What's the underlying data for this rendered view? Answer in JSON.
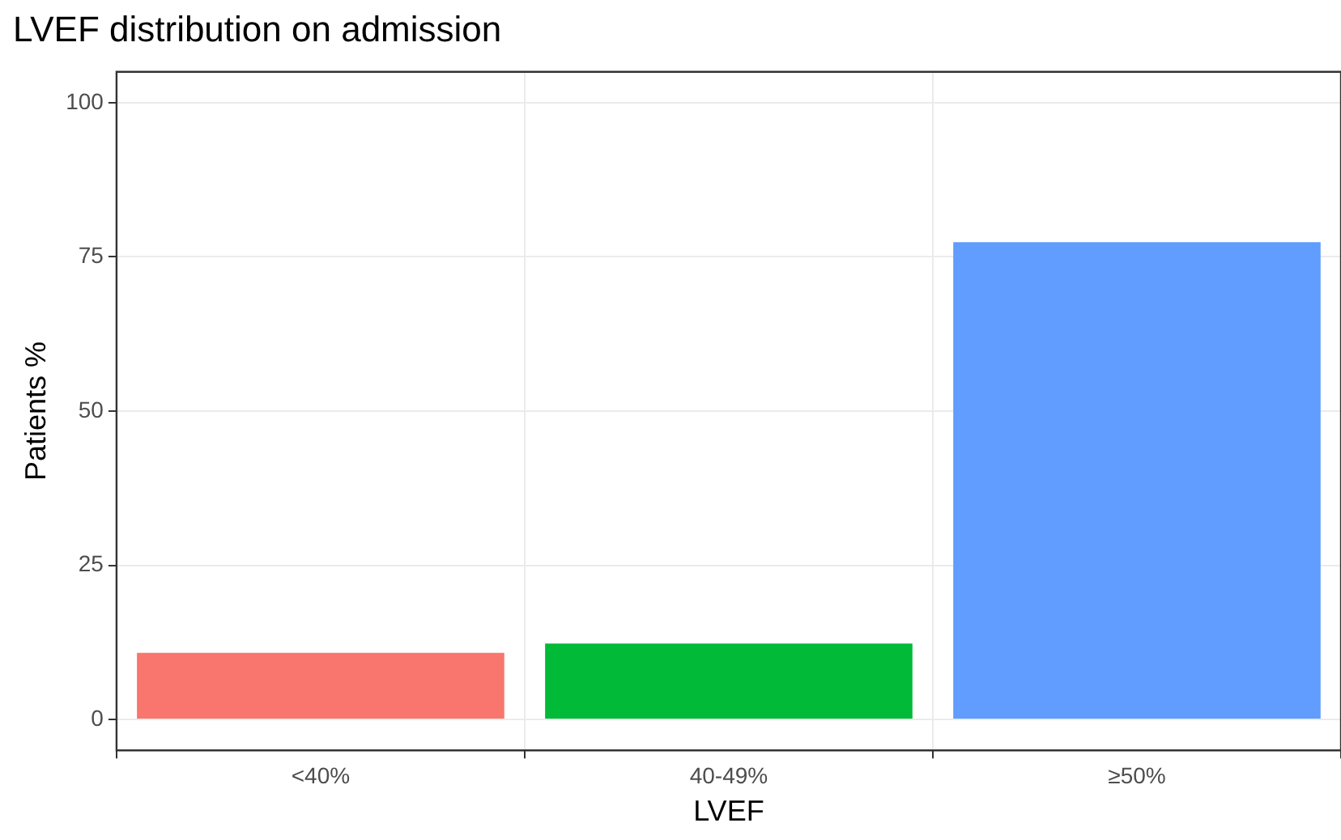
{
  "chart_data": {
    "type": "bar",
    "title": "LVEF distribution on admission",
    "xlabel": "LVEF",
    "ylabel": "Patients %",
    "categories": [
      "<40%",
      "40-49%",
      "≥50%"
    ],
    "values": [
      10.8,
      12.3,
      77.4
    ],
    "colors": [
      "#f8766d",
      "#00ba38",
      "#619cff"
    ],
    "ylim": [
      -5,
      105
    ],
    "yticks": [
      0,
      25,
      50,
      75,
      100
    ],
    "grid": true,
    "legend": false
  }
}
